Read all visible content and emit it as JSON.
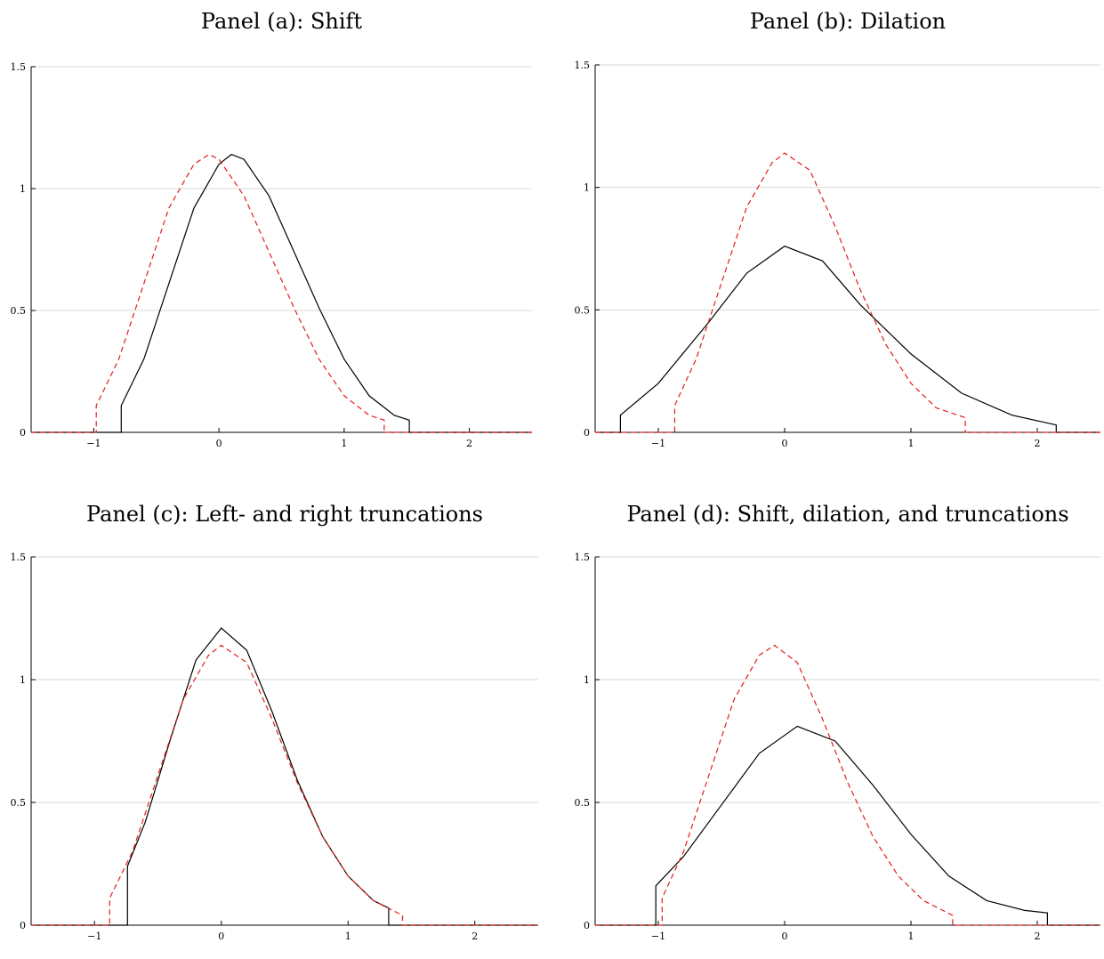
{
  "figure": {
    "background": "#ffffff",
    "series_colors": {
      "solid": "#000000",
      "dashed": "#e41a1c"
    }
  },
  "chart_data": [
    {
      "type": "line",
      "title": "Panel (a): Shift",
      "xlabel": "",
      "ylabel": "",
      "xlim": [
        -1.5,
        2.5
      ],
      "ylim": [
        0,
        1.5
      ],
      "xticks": [
        "−1",
        "0",
        "1",
        "2"
      ],
      "xtick_values": [
        -1,
        0,
        1,
        2
      ],
      "yticks": [
        "0",
        "0.5",
        "1",
        "1.5"
      ],
      "ytick_values": [
        0,
        0.5,
        1,
        1.5
      ],
      "grid": "horizontal",
      "legend": "none",
      "series": [
        {
          "style": "solid",
          "color": "#000000",
          "x": [
            -1.5,
            -0.78,
            -0.78,
            -0.6,
            -0.4,
            -0.2,
            0.0,
            0.1,
            0.2,
            0.4,
            0.6,
            0.8,
            1.0,
            1.2,
            1.4,
            1.52,
            1.52,
            2.5
          ],
          "y": [
            0,
            0,
            0.11,
            0.3,
            0.61,
            0.92,
            1.1,
            1.14,
            1.12,
            0.97,
            0.74,
            0.51,
            0.3,
            0.15,
            0.07,
            0.05,
            0,
            0
          ]
        },
        {
          "style": "dashed",
          "color": "#e41a1c",
          "x": [
            -1.5,
            -0.98,
            -0.98,
            -0.8,
            -0.6,
            -0.4,
            -0.2,
            -0.08,
            0.0,
            0.2,
            0.4,
            0.6,
            0.8,
            1.0,
            1.2,
            1.32,
            1.32,
            2.5
          ],
          "y": [
            0,
            0,
            0.11,
            0.3,
            0.61,
            0.92,
            1.1,
            1.14,
            1.12,
            0.97,
            0.74,
            0.51,
            0.3,
            0.15,
            0.07,
            0.05,
            0,
            0
          ]
        }
      ]
    },
    {
      "type": "line",
      "title": "Panel (b): Dilation",
      "xlabel": "",
      "ylabel": "",
      "xlim": [
        -1.5,
        2.5
      ],
      "ylim": [
        0,
        1.5
      ],
      "xticks": [
        "−1",
        "0",
        "1",
        "2"
      ],
      "xtick_values": [
        -1,
        0,
        1,
        2
      ],
      "yticks": [
        "0",
        "0.5",
        "1",
        "1.5"
      ],
      "ytick_values": [
        0,
        0.5,
        1,
        1.5
      ],
      "grid": "horizontal",
      "legend": "none",
      "series": [
        {
          "style": "solid",
          "color": "#000000",
          "x": [
            -1.5,
            -1.3,
            -1.3,
            -1.0,
            -0.6,
            -0.3,
            0.0,
            0.3,
            0.6,
            1.0,
            1.4,
            1.8,
            2.15,
            2.15,
            2.5
          ],
          "y": [
            0,
            0,
            0.07,
            0.2,
            0.45,
            0.65,
            0.76,
            0.7,
            0.52,
            0.32,
            0.16,
            0.07,
            0.03,
            0,
            0
          ]
        },
        {
          "style": "dashed",
          "color": "#e41a1c",
          "x": [
            -1.5,
            -0.87,
            -0.87,
            -0.7,
            -0.5,
            -0.3,
            -0.1,
            0.0,
            0.2,
            0.4,
            0.6,
            0.8,
            1.0,
            1.2,
            1.43,
            1.43,
            2.5
          ],
          "y": [
            0,
            0,
            0.11,
            0.3,
            0.61,
            0.92,
            1.1,
            1.14,
            1.07,
            0.84,
            0.58,
            0.36,
            0.2,
            0.1,
            0.06,
            0,
            0
          ]
        }
      ]
    },
    {
      "type": "line",
      "title": "Panel (c): Left- and right truncations",
      "xlabel": "",
      "ylabel": "",
      "xlim": [
        -1.5,
        2.5
      ],
      "ylim": [
        0,
        1.5
      ],
      "xticks": [
        "−1",
        "0",
        "1",
        "2"
      ],
      "xtick_values": [
        -1,
        0,
        1,
        2
      ],
      "yticks": [
        "0",
        "0.5",
        "1",
        "1.5"
      ],
      "ytick_values": [
        0,
        0.5,
        1,
        1.5
      ],
      "grid": "horizontal",
      "legend": "none",
      "series": [
        {
          "style": "solid",
          "color": "#000000",
          "x": [
            -1.5,
            -0.74,
            -0.74,
            -0.6,
            -0.4,
            -0.2,
            0.0,
            0.2,
            0.4,
            0.6,
            0.8,
            1.0,
            1.2,
            1.32,
            1.32,
            2.5
          ],
          "y": [
            0,
            0,
            0.24,
            0.42,
            0.76,
            1.08,
            1.21,
            1.12,
            0.87,
            0.59,
            0.36,
            0.2,
            0.1,
            0.07,
            0,
            0
          ]
        },
        {
          "style": "dashed",
          "color": "#e41a1c",
          "x": [
            -1.5,
            -0.88,
            -0.88,
            -0.7,
            -0.5,
            -0.3,
            -0.1,
            0.0,
            0.2,
            0.4,
            0.6,
            0.8,
            1.0,
            1.2,
            1.43,
            1.43,
            2.5
          ],
          "y": [
            0,
            0,
            0.11,
            0.3,
            0.61,
            0.92,
            1.1,
            1.14,
            1.07,
            0.84,
            0.58,
            0.36,
            0.2,
            0.1,
            0.04,
            0,
            0
          ]
        }
      ]
    },
    {
      "type": "line",
      "title": "Panel (d): Shift, dilation, and truncations",
      "xlabel": "",
      "ylabel": "",
      "xlim": [
        -1.5,
        2.5
      ],
      "ylim": [
        0,
        1.5
      ],
      "xticks": [
        "−1",
        "0",
        "1",
        "2"
      ],
      "xtick_values": [
        -1,
        0,
        1,
        2
      ],
      "yticks": [
        "0",
        "0.5",
        "1",
        "1.5"
      ],
      "ytick_values": [
        0,
        0.5,
        1,
        1.5
      ],
      "grid": "horizontal",
      "legend": "none",
      "series": [
        {
          "style": "solid",
          "color": "#000000",
          "x": [
            -1.5,
            -1.02,
            -1.02,
            -0.8,
            -0.5,
            -0.2,
            0.1,
            0.4,
            0.7,
            1.0,
            1.3,
            1.6,
            1.9,
            2.08,
            2.08,
            2.5
          ],
          "y": [
            0,
            0,
            0.16,
            0.28,
            0.49,
            0.7,
            0.81,
            0.75,
            0.57,
            0.37,
            0.2,
            0.1,
            0.06,
            0.05,
            0,
            0
          ]
        },
        {
          "style": "dashed",
          "color": "#e41a1c",
          "x": [
            -1.5,
            -0.97,
            -0.97,
            -0.8,
            -0.6,
            -0.4,
            -0.2,
            -0.08,
            0.1,
            0.3,
            0.5,
            0.7,
            0.9,
            1.1,
            1.33,
            1.33,
            2.5
          ],
          "y": [
            0,
            0,
            0.11,
            0.3,
            0.61,
            0.92,
            1.1,
            1.14,
            1.07,
            0.84,
            0.58,
            0.36,
            0.2,
            0.1,
            0.04,
            0,
            0
          ]
        }
      ]
    }
  ]
}
